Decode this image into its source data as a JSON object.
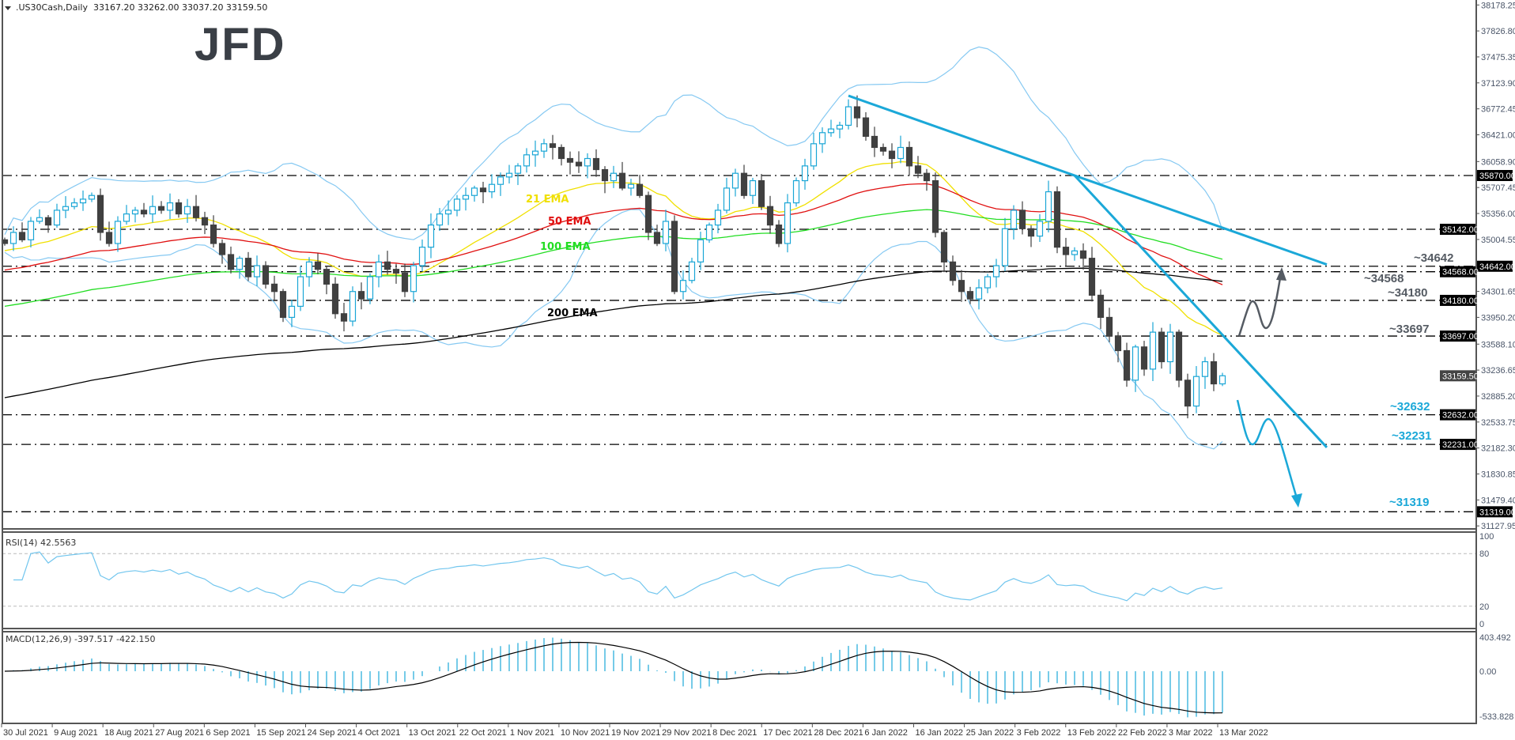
{
  "header": {
    "symbol": ".US30Cash,Daily",
    "ohlc": "33167.20 33262.00 33037.20 33159.50"
  },
  "logo": {
    "text": "JFD"
  },
  "chart_data": {
    "type": "candlestick",
    "title": ".US30Cash,Daily",
    "ylim": [
      31127.95,
      38178.25
    ],
    "grid": false,
    "x_labels": [
      "30 Jul 2021",
      "9 Aug 2021",
      "18 Aug 2021",
      "27 Aug 2021",
      "6 Sep 2021",
      "15 Sep 2021",
      "24 Sep 2021",
      "4 Oct 2021",
      "13 Oct 2021",
      "22 Oct 2021",
      "1 Nov 2021",
      "10 Nov 2021",
      "19 Nov 2021",
      "29 Nov 2021",
      "8 Dec 2021",
      "17 Dec 2021",
      "28 Dec 2021",
      "6 Jan 2022",
      "16 Jan 2022",
      "25 Jan 2022",
      "3 Feb 2022",
      "13 Feb 2022",
      "22 Feb 2022",
      "3 Mar 2022",
      "13 Mar 2022"
    ],
    "price_ticks": [
      "38178.25",
      "37826.80",
      "37475.35",
      "37123.90",
      "36772.45",
      "36421.00",
      "36058.90",
      "35707.45",
      "35356.00",
      "35004.55",
      "34301.65",
      "33950.20",
      "33588.10",
      "33236.65",
      "32885.20",
      "32533.75",
      "32182.30",
      "31830.85",
      "31479.40",
      "31127.95"
    ],
    "closes": [
      34950,
      35100,
      35000,
      35250,
      35300,
      35200,
      35400,
      35450,
      35500,
      35550,
      35600,
      35100,
      34950,
      35250,
      35350,
      35400,
      35350,
      35450,
      35400,
      35500,
      35350,
      35450,
      35300,
      35200,
      34950,
      34800,
      34600,
      34750,
      34500,
      34650,
      34400,
      34300,
      33950,
      34100,
      34500,
      34700,
      34600,
      34400,
      34000,
      33900,
      34300,
      34200,
      34500,
      34700,
      34600,
      34550,
      34300,
      34650,
      34900,
      35200,
      35350,
      35400,
      35550,
      35600,
      35700,
      35650,
      35750,
      35850,
      35900,
      36000,
      36150,
      36200,
      36300,
      36250,
      36100,
      36050,
      36000,
      36100,
      35950,
      35800,
      35900,
      35700,
      35750,
      35600,
      35100,
      34950,
      35250,
      34300,
      34450,
      34700,
      35000,
      35200,
      35400,
      35700,
      35900,
      35600,
      35800,
      35450,
      35200,
      34950,
      35500,
      35800,
      36000,
      36300,
      36450,
      36500,
      36550,
      36800,
      36650,
      36400,
      36250,
      36200,
      36100,
      36250,
      36000,
      35900,
      35800,
      35100,
      34700,
      34450,
      34300,
      34200,
      34350,
      34500,
      34650,
      35150,
      35400,
      35150,
      35050,
      35250,
      35650,
      34900,
      34800,
      34850,
      34750,
      34250,
      33950,
      33700,
      33500,
      33100,
      33550,
      33250,
      33750,
      33350,
      33750,
      33100,
      32750,
      33150,
      33350,
      33050,
      33160
    ],
    "current_price": {
      "label": "33159.50",
      "value": 33159.5
    },
    "levels": [
      {
        "value": 35870,
        "label": "35870.00"
      },
      {
        "value": 35142,
        "label": "35142.00"
      },
      {
        "value": 34642,
        "label": "34642.00"
      },
      {
        "value": 34568,
        "label": "34568.00"
      },
      {
        "value": 34180,
        "label": "34180.00"
      },
      {
        "value": 33697,
        "label": "33697.00"
      },
      {
        "value": 32632,
        "label": "32632.00"
      },
      {
        "value": 32231,
        "label": "32231.00"
      },
      {
        "value": 31319,
        "label": "31319.00"
      }
    ],
    "annotations": [
      {
        "text": "~34642",
        "color": "#555b63"
      },
      {
        "text": "~34568",
        "color": "#555b63"
      },
      {
        "text": "~34180",
        "color": "#555b63"
      },
      {
        "text": "~33697",
        "color": "#555b63"
      },
      {
        "text": "~32632",
        "color": "#1ba8d8"
      },
      {
        "text": "~32231",
        "color": "#1ba8d8"
      },
      {
        "text": "~31319",
        "color": "#1ba8d8"
      }
    ],
    "emas": [
      {
        "label": "21 EMA",
        "period": 21,
        "color": "#f0e000",
        "start": 34843
      },
      {
        "label": "50 EMA",
        "period": 50,
        "color": "#e01010",
        "start": 34575
      },
      {
        "label": "100 EMA",
        "period": 100,
        "color": "#22dd22",
        "start": 34083
      },
      {
        "label": "200 EMA",
        "period": 200,
        "color": "#000000",
        "start": 32842
      }
    ],
    "bollinger": {
      "period": 20,
      "deviations": 2,
      "color": "#86c9f2"
    },
    "trendlines": [
      {
        "from": [
          97,
          36950
        ],
        "to": [
          123,
          35870
        ],
        "extend_to": 152,
        "color": "#1ba8d8"
      },
      {
        "from": [
          123,
          35870
        ],
        "to": [
          152,
          32190
        ],
        "extend_to": 152,
        "color": "#1ba8d8"
      }
    ],
    "colors": {
      "bull": "#1aa6d6",
      "bear": "#404040",
      "rsi": "#72c6ee",
      "macd_hist": "#1ba8d8",
      "macd_signal": "#000000"
    },
    "rsi": {
      "label": "RSI(14) 42.5563",
      "period": 14,
      "ticks": [
        "100",
        "80",
        "20",
        "0"
      ],
      "levels": [
        80,
        20
      ]
    },
    "macd": {
      "label": "MACD(12,26,9) -397.517 -422.150",
      "params": [
        12,
        26,
        9
      ],
      "ticks": [
        "403.492",
        "0.00",
        "-533.828"
      ],
      "range": [
        -533.828,
        403.492
      ]
    }
  }
}
